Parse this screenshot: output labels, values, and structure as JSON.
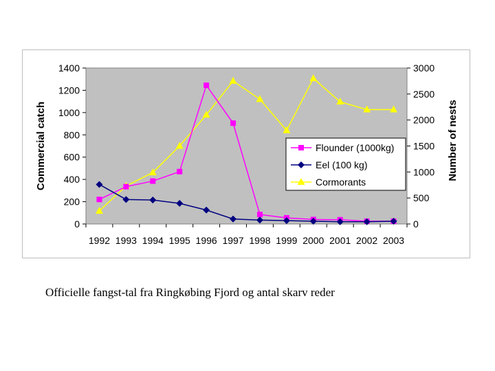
{
  "chart_data": {
    "type": "line",
    "categories": [
      "1992",
      "1993",
      "1994",
      "1995",
      "1996",
      "1997",
      "1998",
      "1999",
      "2000",
      "2001",
      "2002",
      "2003"
    ],
    "ylabel": "Commercial catch",
    "y2label": "Number of nests",
    "ylim": [
      0,
      1400
    ],
    "yticks": [
      0,
      200,
      400,
      600,
      800,
      1000,
      1200,
      1400
    ],
    "y2lim": [
      0,
      3000
    ],
    "y2ticks": [
      0,
      500,
      1000,
      1500,
      2000,
      2500,
      3000
    ],
    "grid": false,
    "legend_position": "lower-right inside plot",
    "plot_background": "#c0c0c0",
    "series": [
      {
        "name": "Flounder (1000kg)",
        "axis": "left",
        "color": "#ff00ff",
        "marker": "square",
        "values": [
          220,
          335,
          385,
          470,
          1245,
          905,
          85,
          55,
          40,
          38,
          25,
          25
        ]
      },
      {
        "name": "Eel (100 kg)",
        "axis": "left",
        "color": "#000080",
        "marker": "diamond",
        "values": [
          355,
          220,
          215,
          185,
          125,
          45,
          35,
          30,
          25,
          20,
          20,
          25
        ]
      },
      {
        "name": "Cormorants",
        "axis": "right",
        "color": "#ffff00",
        "marker": "triangle",
        "values": [
          250,
          730,
          990,
          1500,
          2100,
          2750,
          2400,
          1800,
          2800,
          2350,
          2200,
          2200
        ]
      }
    ]
  },
  "caption": "Officielle fangst-tal fra Ringkøbing Fjord og antal skarv reder"
}
